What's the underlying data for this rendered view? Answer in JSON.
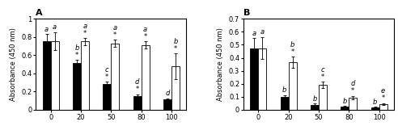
{
  "chart_data": [
    {
      "type": "bar",
      "title": "A",
      "y_label": "Absorbance (450 nm)",
      "categories": [
        "0",
        "20",
        "50",
        "80",
        "100"
      ],
      "ylim": [
        0,
        1.0
      ],
      "yticks": [
        0,
        0.2,
        0.4,
        0.6,
        0.8,
        {
          "value": 1.0,
          "label": "1"
        }
      ],
      "series": [
        {
          "color": "#000000",
          "values": [
            0.75,
            0.51,
            0.28,
            0.15,
            0.11
          ],
          "errors": [
            0.08,
            0.04,
            0.025,
            0.02,
            0.015
          ],
          "annotations": [
            [
              "a"
            ],
            [
              "*",
              "b"
            ],
            [
              "*",
              "c"
            ],
            [
              "*",
              "d"
            ],
            [
              "d"
            ]
          ]
        },
        {
          "color": "#ffffff",
          "values": [
            0.755,
            0.75,
            0.73,
            0.71,
            0.48
          ],
          "errors": [
            0.1,
            0.04,
            0.04,
            0.04,
            0.14
          ],
          "annotations": [
            [
              "a"
            ],
            [
              "*",
              "a"
            ],
            [
              "*",
              "a"
            ],
            [
              "*",
              "a"
            ],
            [
              "*",
              "b"
            ]
          ]
        }
      ]
    },
    {
      "type": "bar",
      "title": "B",
      "y_label": "Absorbance (450 nm)",
      "categories": [
        "0",
        "20",
        "50",
        "80",
        "100"
      ],
      "ylim": [
        0,
        0.7
      ],
      "yticks": [
        0,
        0.1,
        0.2,
        0.3,
        0.4,
        0.5,
        0.6,
        0.7
      ],
      "series": [
        {
          "color": "#000000",
          "values": [
            0.475,
            0.1,
            0.038,
            0.022,
            0.018
          ],
          "errors": [
            0.075,
            0.012,
            0.008,
            0.005,
            0.004
          ],
          "annotations": [
            [
              "a"
            ],
            [
              "b"
            ],
            [
              "b"
            ],
            [
              "b"
            ],
            [
              "b"
            ]
          ]
        },
        {
          "color": "#ffffff",
          "values": [
            0.475,
            0.365,
            0.19,
            0.092,
            0.042
          ],
          "errors": [
            0.085,
            0.042,
            0.025,
            0.014,
            0.009
          ],
          "annotations": [
            [
              "a"
            ],
            [
              "*",
              "b"
            ],
            [
              "*",
              "c"
            ],
            [
              "*",
              "d"
            ],
            [
              "*",
              "e"
            ]
          ]
        }
      ]
    }
  ]
}
